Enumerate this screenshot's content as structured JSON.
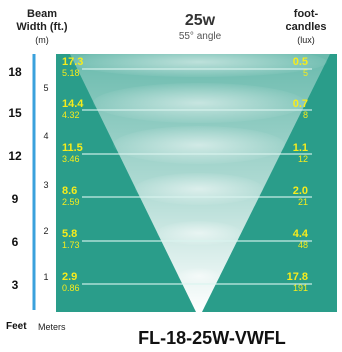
{
  "header": {
    "left": {
      "line1": "Beam",
      "line2": "Width (ft.)",
      "unit": "(m)"
    },
    "title": {
      "power": "25w",
      "angle": "55° angle"
    },
    "right": {
      "line1": "foot-",
      "line2": "candles",
      "unit": "(lux)"
    }
  },
  "feet_scale": [
    "18",
    "15",
    "12",
    "9",
    "6",
    "3"
  ],
  "meter_scale": [
    "5",
    "4",
    "3",
    "2",
    "1"
  ],
  "rows": [
    {
      "width_ft": "17.3",
      "width_m": "5.18",
      "fc": "0.5",
      "lux": "5"
    },
    {
      "width_ft": "14.4",
      "width_m": "4.32",
      "fc": "0.7",
      "lux": "8"
    },
    {
      "width_ft": "11.5",
      "width_m": "3.46",
      "fc": "1.1",
      "lux": "12"
    },
    {
      "width_ft": "8.6",
      "width_m": "2.59",
      "fc": "2.0",
      "lux": "21"
    },
    {
      "width_ft": "5.8",
      "width_m": "1.73",
      "fc": "4.4",
      "lux": "48"
    },
    {
      "width_ft": "2.9",
      "width_m": "0.86",
      "fc": "17.8",
      "lux": "191"
    }
  ],
  "footer": {
    "feet_label": "Feet",
    "meters_label": "Meters",
    "model": "FL-18-25W-VWFL"
  },
  "colors": {
    "background": "#2a9d8a",
    "accent_text": "#f6ec1c",
    "scale_bar": "#3aa1dc"
  }
}
